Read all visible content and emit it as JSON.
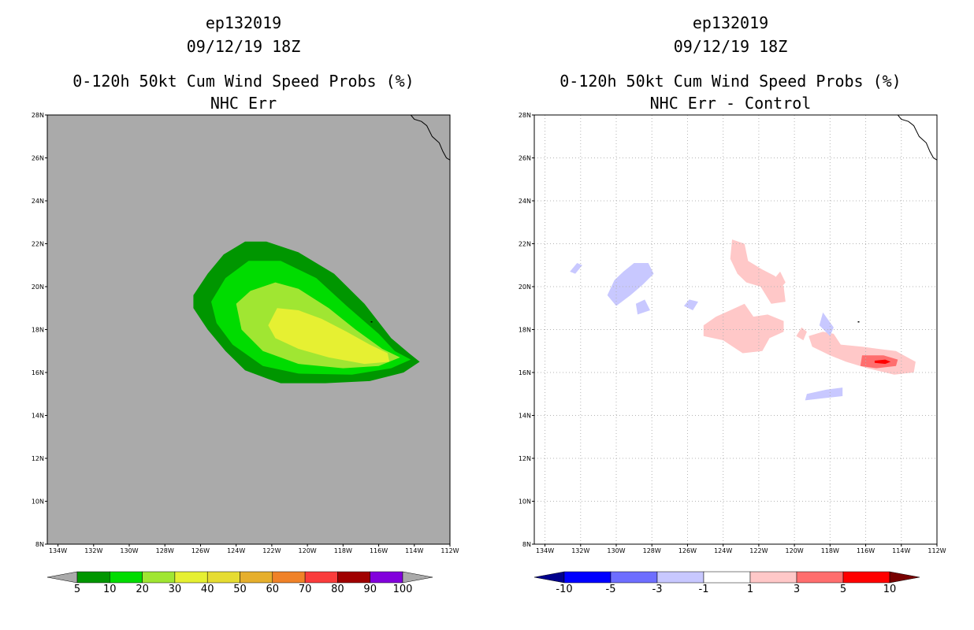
{
  "panels": [
    {
      "id": "left",
      "title_storm": "ep132019",
      "title_date": "09/12/19 18Z",
      "title_product": "0-120h 50kt Cum Wind Speed Probs (%)",
      "title_sub": "NHC Err"
    },
    {
      "id": "right",
      "title_storm": "ep132019",
      "title_date": "09/12/19 18Z",
      "title_product": "0-120h 50kt Cum Wind Speed Probs (%)",
      "title_sub": "NHC Err - Control"
    }
  ],
  "chart_data": [
    {
      "type": "heatmap",
      "title": "0-120h 50kt Cum Wind Speed Probs (%) NHC Err",
      "x_ticks": [
        "134W",
        "132W",
        "130W",
        "128W",
        "126W",
        "124W",
        "122W",
        "120W",
        "118W",
        "116W",
        "114W",
        "112W"
      ],
      "y_ticks": [
        "8N",
        "10N",
        "12N",
        "14N",
        "16N",
        "18N",
        "20N",
        "22N",
        "24N",
        "26N",
        "28N"
      ],
      "xlim": [
        -134.6,
        -112
      ],
      "ylim": [
        8,
        28
      ],
      "background_color": "#aaaaaa",
      "levels": [
        5,
        10,
        20,
        30,
        40,
        50,
        60,
        70,
        80,
        90,
        100
      ],
      "colors": [
        "#009600",
        "#00dc00",
        "#a0e632",
        "#e6f032",
        "#e6dc32",
        "#e6af2d",
        "#f08228",
        "#fa3c3c",
        "#a00000",
        "#8200dc"
      ],
      "under_color": "#aaaaaa",
      "over_color": "#aaaaaa",
      "contours": [
        {
          "level": 5,
          "color": "#009600",
          "points": [
            [
              -126.4,
              19.6
            ],
            [
              -125.6,
              20.6
            ],
            [
              -124.7,
              21.5
            ],
            [
              -123.5,
              22.1
            ],
            [
              -122.3,
              22.1
            ],
            [
              -120.5,
              21.6
            ],
            [
              -118.5,
              20.6
            ],
            [
              -116.8,
              19.2
            ],
            [
              -115.3,
              17.6
            ],
            [
              -114.3,
              16.9
            ],
            [
              -113.7,
              16.5
            ],
            [
              -114.6,
              16.0
            ],
            [
              -116.5,
              15.6
            ],
            [
              -119,
              15.5
            ],
            [
              -121.5,
              15.5
            ],
            [
              -122.2,
              15.7
            ],
            [
              -123.5,
              16.1
            ],
            [
              -124.6,
              17.0
            ],
            [
              -125.6,
              18.0
            ],
            [
              -126.4,
              19.0
            ]
          ]
        },
        {
          "level": 10,
          "color": "#00dc00",
          "points": [
            [
              -125.4,
              19.3
            ],
            [
              -124.6,
              20.4
            ],
            [
              -123.3,
              21.2
            ],
            [
              -121.5,
              21.2
            ],
            [
              -119.5,
              20.4
            ],
            [
              -117.8,
              19.1
            ],
            [
              -116,
              17.8
            ],
            [
              -115.1,
              17.0
            ],
            [
              -114.2,
              16.6
            ],
            [
              -115.3,
              16.2
            ],
            [
              -117.5,
              15.9
            ],
            [
              -120.5,
              15.95
            ],
            [
              -122.5,
              16.3
            ],
            [
              -124.2,
              17.3
            ],
            [
              -125.1,
              18.3
            ]
          ]
        },
        {
          "level": 20,
          "color": "#a0e632",
          "points": [
            [
              -124,
              19.2
            ],
            [
              -123.2,
              19.8
            ],
            [
              -121.8,
              20.2
            ],
            [
              -120.5,
              19.9
            ],
            [
              -118.8,
              19.0
            ],
            [
              -117.3,
              18.0
            ],
            [
              -115.8,
              17.1
            ],
            [
              -114.8,
              16.7
            ],
            [
              -116,
              16.3
            ],
            [
              -118,
              16.2
            ],
            [
              -120.5,
              16.4
            ],
            [
              -122.5,
              17.0
            ],
            [
              -123.7,
              18.0
            ]
          ]
        },
        {
          "level": 30,
          "color": "#e6f032",
          "points": [
            [
              -122.2,
              18.2
            ],
            [
              -121.7,
              19.0
            ],
            [
              -120.5,
              18.9
            ],
            [
              -119.2,
              18.5
            ],
            [
              -117.8,
              17.9
            ],
            [
              -116.5,
              17.3
            ],
            [
              -115.5,
              16.9
            ],
            [
              -115.4,
              16.5
            ],
            [
              -116.8,
              16.4
            ],
            [
              -118.8,
              16.7
            ],
            [
              -120.5,
              17.1
            ],
            [
              -121.8,
              17.6
            ]
          ]
        }
      ]
    },
    {
      "type": "heatmap",
      "title": "0-120h 50kt Cum Wind Speed Probs (%) NHC Err - Control",
      "x_ticks": [
        "134W",
        "132W",
        "130W",
        "128W",
        "126W",
        "124W",
        "122W",
        "120W",
        "118W",
        "116W",
        "114W",
        "112W"
      ],
      "y_ticks": [
        "8N",
        "10N",
        "12N",
        "14N",
        "16N",
        "18N",
        "20N",
        "22N",
        "24N",
        "26N",
        "28N"
      ],
      "xlim": [
        -134.6,
        -112
      ],
      "ylim": [
        8,
        28
      ],
      "grid": true,
      "background_color": "#ffffff",
      "levels": [
        -10,
        -5,
        -3,
        -1,
        1,
        3,
        5,
        10
      ],
      "colors": [
        "#0000ff",
        "#6e6eff",
        "#c8c8ff",
        "#ffffff",
        "#ffc8c8",
        "#ff6e6e",
        "#ff0000"
      ],
      "under_color": "#00008c",
      "over_color": "#780000",
      "contours": [
        {
          "level": 1,
          "color": "#ffc8c8",
          "points": [
            [
              -123.5,
              22.2
            ],
            [
              -122.8,
              22.0
            ],
            [
              -122.6,
              21.2
            ],
            [
              -121.8,
              20.8
            ],
            [
              -121.1,
              20.5
            ],
            [
              -120.6,
              20.0
            ],
            [
              -120.5,
              19.3
            ],
            [
              -121.3,
              19.2
            ],
            [
              -121.9,
              20.0
            ],
            [
              -122.7,
              20.2
            ],
            [
              -123.2,
              20.6
            ],
            [
              -123.6,
              21.3
            ]
          ]
        },
        {
          "level": 1,
          "color": "#ffc8c8",
          "points": [
            [
              -120.8,
              20.7
            ],
            [
              -120.5,
              20.2
            ],
            [
              -120.9,
              19.8
            ],
            [
              -121.2,
              20.3
            ]
          ]
        },
        {
          "level": 1,
          "color": "#ffc8c8",
          "points": [
            [
              -125.1,
              18.2
            ],
            [
              -124.4,
              18.6
            ],
            [
              -123.6,
              18.9
            ],
            [
              -122.8,
              19.2
            ],
            [
              -122.3,
              18.6
            ],
            [
              -121.5,
              18.7
            ],
            [
              -120.6,
              18.4
            ],
            [
              -120.6,
              17.9
            ],
            [
              -121.4,
              17.6
            ],
            [
              -121.8,
              17.0
            ],
            [
              -122.9,
              16.9
            ],
            [
              -124.0,
              17.5
            ],
            [
              -125.1,
              17.7
            ]
          ]
        },
        {
          "level": 1,
          "color": "#ffc8c8",
          "points": [
            [
              -119.6,
              18.1
            ],
            [
              -119.3,
              17.9
            ],
            [
              -119.5,
              17.5
            ],
            [
              -119.9,
              17.7
            ]
          ]
        },
        {
          "level": 1,
          "color": "#ffc8c8",
          "points": [
            [
              -118.4,
              17.9
            ],
            [
              -117.8,
              17.8
            ],
            [
              -117.4,
              17.3
            ],
            [
              -116.2,
              17.2
            ],
            [
              -115.3,
              17.1
            ],
            [
              -114.3,
              17.0
            ],
            [
              -113.2,
              16.5
            ],
            [
              -113.3,
              16.0
            ],
            [
              -114.4,
              15.9
            ],
            [
              -115.9,
              16.2
            ],
            [
              -117.1,
              16.5
            ],
            [
              -118.0,
              16.8
            ],
            [
              -119.0,
              17.2
            ],
            [
              -119.2,
              17.7
            ]
          ]
        },
        {
          "level": 3,
          "color": "#ff6e6e",
          "points": [
            [
              -116.2,
              16.8
            ],
            [
              -115.0,
              16.8
            ],
            [
              -114.2,
              16.6
            ],
            [
              -114.3,
              16.3
            ],
            [
              -115.4,
              16.2
            ],
            [
              -116.3,
              16.3
            ]
          ]
        },
        {
          "level": 5,
          "color": "#ff0000",
          "points": [
            [
              -115.5,
              16.55
            ],
            [
              -114.9,
              16.6
            ],
            [
              -114.6,
              16.5
            ],
            [
              -114.9,
              16.4
            ],
            [
              -115.5,
              16.45
            ]
          ]
        },
        {
          "level": -1,
          "color": "#c8c8ff",
          "points": [
            [
              -132.3,
              20.6
            ],
            [
              -131.9,
              21.0
            ],
            [
              -132.2,
              21.1
            ],
            [
              -132.6,
              20.7
            ]
          ]
        },
        {
          "level": -1,
          "color": "#c8c8ff",
          "points": [
            [
              -130.1,
              20.3
            ],
            [
              -129.6,
              20.7
            ],
            [
              -129.0,
              21.1
            ],
            [
              -128.2,
              21.1
            ],
            [
              -127.9,
              20.6
            ],
            [
              -128.5,
              20.1
            ],
            [
              -129.2,
              19.6
            ],
            [
              -130.0,
              19.1
            ],
            [
              -130.5,
              19.6
            ]
          ]
        },
        {
          "level": -1,
          "color": "#c8c8ff",
          "points": [
            [
              -128.9,
              19.2
            ],
            [
              -128.4,
              19.4
            ],
            [
              -128.1,
              18.9
            ],
            [
              -128.8,
              18.7
            ]
          ]
        },
        {
          "level": -1,
          "color": "#c8c8ff",
          "points": [
            [
              -125.9,
              19.4
            ],
            [
              -125.4,
              19.3
            ],
            [
              -125.7,
              18.9
            ],
            [
              -126.2,
              19.1
            ]
          ]
        },
        {
          "level": -1,
          "color": "#c8c8ff",
          "points": [
            [
              -118.4,
              18.8
            ],
            [
              -117.8,
              18.1
            ],
            [
              -118.0,
              17.7
            ],
            [
              -118.6,
              18.2
            ]
          ]
        },
        {
          "level": -1,
          "color": "#c8c8ff",
          "points": [
            [
              -119.3,
              15.0
            ],
            [
              -118.2,
              15.2
            ],
            [
              -117.3,
              15.3
            ],
            [
              -117.3,
              14.9
            ],
            [
              -118.4,
              14.8
            ],
            [
              -119.4,
              14.7
            ]
          ]
        }
      ]
    }
  ],
  "colorbar_left": {
    "labels": [
      "5",
      "10",
      "20",
      "30",
      "40",
      "50",
      "60",
      "70",
      "80",
      "90",
      "100"
    ]
  },
  "colorbar_right": {
    "labels": [
      "-10",
      "-5",
      "-3",
      "-1",
      "1",
      "3",
      "5",
      "10"
    ]
  },
  "coastline": [
    [
      -114.2,
      28.0
    ],
    [
      -114.0,
      27.8
    ],
    [
      -113.6,
      27.7
    ],
    [
      -113.3,
      27.5
    ],
    [
      -113.0,
      27.0
    ],
    [
      -112.6,
      26.7
    ],
    [
      -112.4,
      26.3
    ],
    [
      -112.2,
      26.0
    ],
    [
      -112.0,
      25.9
    ]
  ]
}
